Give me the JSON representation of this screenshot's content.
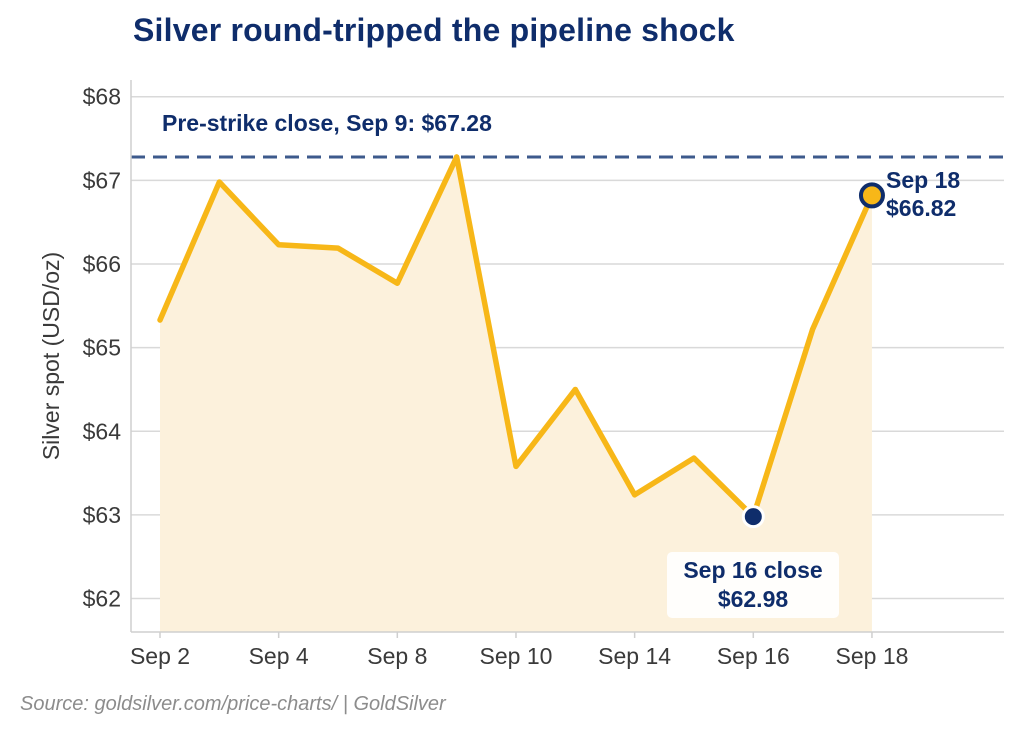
{
  "title": "Silver round-tripped the pipeline shock",
  "source": "Source: goldsilver.com/price-charts/  |  GoldSilver",
  "colors": {
    "line": "#f7b718",
    "fill": "#fcf1dc",
    "reference": "#3d5a8c",
    "marker_dark": "#0f2d6b",
    "text_dark": "#0f2d6b",
    "grid": "#d9d9d9"
  },
  "chart_data": {
    "type": "area",
    "title": "Silver round-tripped the pipeline shock",
    "ylabel": "Silver spot (USD/oz)",
    "xlabel": "",
    "ylim": [
      61.6,
      68.2
    ],
    "y_ticks": [
      62,
      63,
      64,
      65,
      66,
      67,
      68
    ],
    "y_tick_labels": [
      "$62",
      "$63",
      "$64",
      "$65",
      "$66",
      "$67",
      "$68"
    ],
    "x_tick_labels": [
      "Sep 2",
      "Sep 4",
      "Sep 8",
      "Sep 10",
      "Sep 14",
      "Sep 16",
      "Sep 18"
    ],
    "grid": true,
    "series": [
      {
        "values": [
          65.33,
          66.98,
          66.23,
          66.19,
          65.77,
          67.28,
          63.58,
          64.5,
          63.24,
          63.68,
          62.98,
          65.22,
          66.82
        ]
      }
    ],
    "reference_line": {
      "value": 67.28,
      "label": "Pre-strike close, Sep 9: $67.28"
    },
    "annotations": [
      {
        "point_index": 10,
        "line1": "Sep 16 close",
        "line2": "$62.98"
      },
      {
        "point_index": 12,
        "line1": "Sep 18",
        "line2": "$66.82"
      }
    ]
  }
}
